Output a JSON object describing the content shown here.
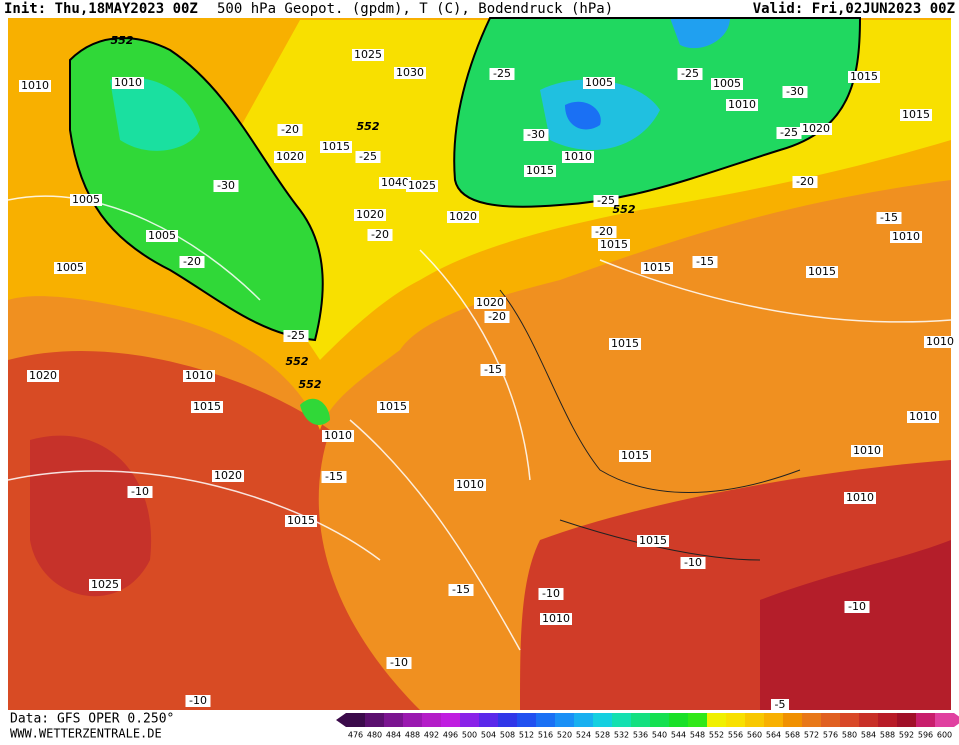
{
  "header": {
    "init": "Init: Thu,18MAY2023 00Z",
    "title": "500 hPa Geopot. (gpdm), T (C), Bodendruck (hPa)",
    "valid": "Valid: Fri,02JUN2023 00Z"
  },
  "footer": {
    "source": "Data: GFS OPER 0.250°",
    "site": "WWW.WETTERZENTRALE.DE"
  },
  "map": {
    "contour_labels": [
      1010,
      1010,
      552,
      1025,
      1030,
      -25,
      1005,
      -25,
      1005,
      1015,
      1010,
      -30,
      1015,
      -25,
      1020,
      1020,
      -20,
      1015,
      552,
      -25,
      -30,
      1010,
      1015,
      1040,
      1025,
      -30,
      1005,
      -20,
      1020,
      1020,
      -25,
      552,
      -20,
      -20,
      1015,
      -15,
      1010,
      1005,
      -20,
      1005,
      1015,
      -15,
      1015,
      1020,
      -20,
      -25,
      552,
      1015,
      1010,
      1020,
      1010,
      552,
      -15,
      1015,
      1015,
      1010,
      1010,
      1015,
      1010,
      1020,
      -15,
      1010,
      -10,
      1010,
      1015,
      1015,
      -10,
      1025,
      -15,
      -10,
      1010,
      -10,
      -10,
      -10,
      -5
    ]
  },
  "legend": {
    "values": [
      476,
      480,
      484,
      488,
      492,
      496,
      500,
      504,
      508,
      512,
      516,
      520,
      524,
      528,
      532,
      536,
      540,
      544,
      548,
      552,
      556,
      560,
      564,
      568,
      572,
      576,
      580,
      584,
      588,
      592,
      596,
      600
    ],
    "colors": [
      "#3a0a4a",
      "#5a0f6e",
      "#7a1490",
      "#9a18b0",
      "#b41cc8",
      "#c01ee0",
      "#8a22e8",
      "#5a28ea",
      "#3036e8",
      "#2050f0",
      "#1a70f4",
      "#1a90f6",
      "#18b0f0",
      "#14d0e0",
      "#14e0b0",
      "#14e080",
      "#14e050",
      "#18e028",
      "#30e818",
      "#f0f000",
      "#f8e000",
      "#f8c800",
      "#f8b000",
      "#f09000",
      "#e87818",
      "#e06020",
      "#d84828",
      "#c83028",
      "#b81c28",
      "#a01028",
      "#c81e6c",
      "#e040a0"
    ]
  }
}
